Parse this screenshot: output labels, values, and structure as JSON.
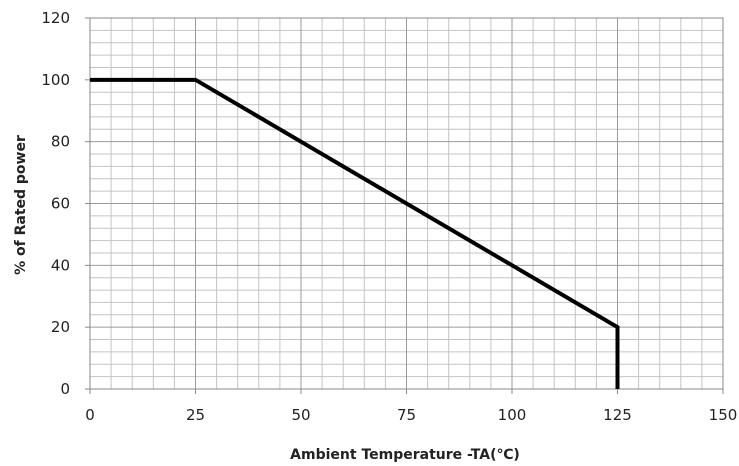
{
  "chart_data": {
    "type": "line",
    "title": "",
    "xlabel": "Ambient Temperature -TA(℃)",
    "ylabel": "% of Rated power",
    "xlim": [
      0,
      150
    ],
    "ylim": [
      0,
      120
    ],
    "x_ticks": [
      "0",
      "25",
      "50",
      "75",
      "100",
      "125",
      "150"
    ],
    "y_ticks": [
      "0",
      "20",
      "40",
      "60",
      "80",
      "100",
      "120"
    ],
    "grid": true,
    "legend": "none",
    "series": [
      {
        "x": [
          0,
          25,
          125,
          125
        ],
        "y": [
          100,
          100,
          20,
          0
        ],
        "color": "#000000"
      }
    ]
  }
}
